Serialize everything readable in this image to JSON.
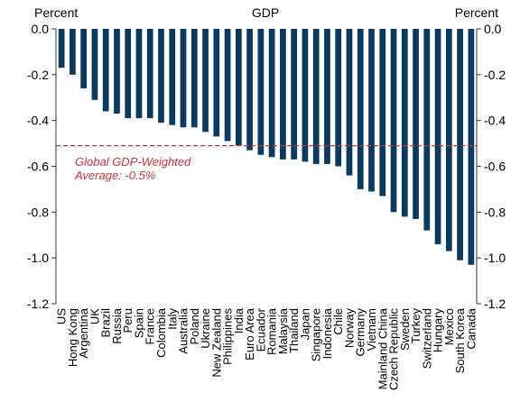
{
  "chart_data": {
    "type": "bar",
    "title": "GDP",
    "ylabel_left": "Percent",
    "ylabel_right": "Percent",
    "ylim": [
      -1.2,
      0.0
    ],
    "yticks": [
      "0.0",
      "-0.2",
      "-0.4",
      "-0.6",
      "-0.8",
      "-1.0",
      "-1.2"
    ],
    "bar_color": "#0b3a5e",
    "categories": [
      "US",
      "Hong Kong",
      "Argentina",
      "UK",
      "Brazil",
      "Russia",
      "Peru",
      "Spain",
      "France",
      "Colombia",
      "Italy",
      "Australia",
      "Poland",
      "Ukraine",
      "New Zealand",
      "Philippines",
      "India",
      "Euro Area",
      "Ecuador",
      "Romania",
      "Malaysia",
      "Thailand",
      "Japan",
      "Singapore",
      "Indonesia",
      "Chile",
      "Norway",
      "Germany",
      "Vietnam",
      "Mainland China",
      "Czech Republic",
      "Sweden",
      "Turkey",
      "Switzerland",
      "Hungary",
      "Mexico",
      "South Korea",
      "Canada"
    ],
    "values": [
      -0.17,
      -0.2,
      -0.26,
      -0.31,
      -0.36,
      -0.37,
      -0.39,
      -0.39,
      -0.39,
      -0.41,
      -0.42,
      -0.43,
      -0.43,
      -0.45,
      -0.47,
      -0.49,
      -0.51,
      -0.53,
      -0.55,
      -0.56,
      -0.57,
      -0.57,
      -0.58,
      -0.59,
      -0.59,
      -0.6,
      -0.64,
      -0.7,
      -0.71,
      -0.73,
      -0.8,
      -0.82,
      -0.83,
      -0.88,
      -0.94,
      -0.97,
      -1.01,
      -1.03
    ],
    "reference_line": {
      "value": -0.51,
      "color": "#c8383a",
      "style": "dashed",
      "label_line1": "Global GDP-Weighted",
      "label_line2": "Average: -0.5%"
    }
  }
}
